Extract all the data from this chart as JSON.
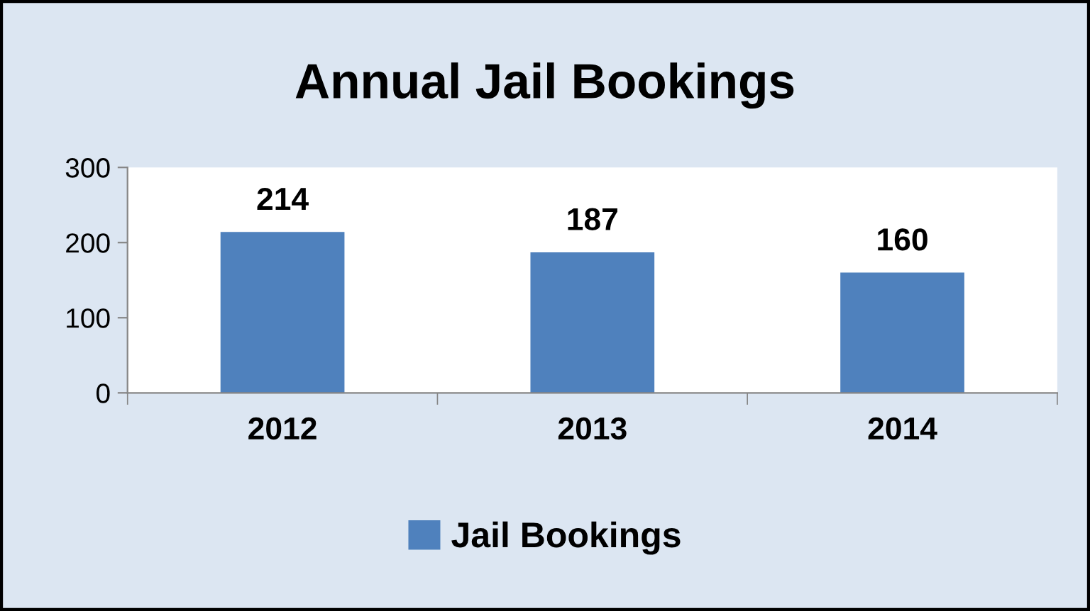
{
  "chart_data": {
    "type": "bar",
    "title": "Annual Jail Bookings",
    "categories": [
      "2012",
      "2013",
      "2014"
    ],
    "series": [
      {
        "name": "Jail Bookings",
        "color": "#4f81bd",
        "values": [
          214,
          187,
          160
        ]
      }
    ],
    "ylim": [
      0,
      300
    ],
    "yticks": [
      0,
      100,
      200,
      300
    ],
    "grid": false,
    "legend": "bottom",
    "data_labels": true
  }
}
